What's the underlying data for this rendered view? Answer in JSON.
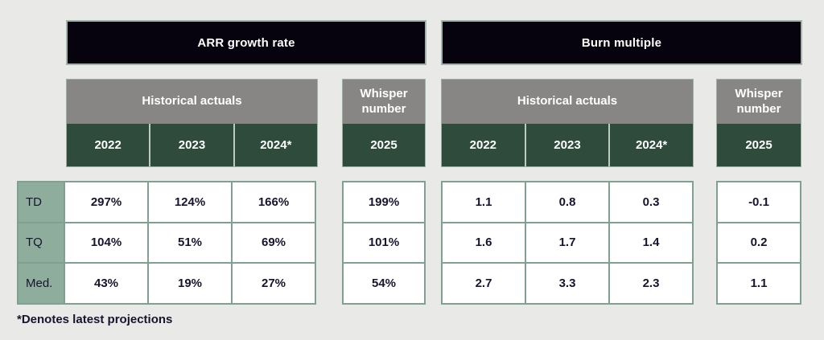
{
  "background": "#e9e9e7",
  "colors": {
    "title_bar_bg": "#06030f",
    "title_bar_text": "#ffffff",
    "gray_header_bg": "#878685",
    "green_header_bg": "#2e4b3b",
    "row_label_bg": "#8ead9d",
    "table_border": "#7fa192",
    "value_text": "#16152d"
  },
  "headers": {
    "historical": "Historical actuals",
    "whisper": "Whisper number",
    "years": [
      "2022",
      "2023",
      "2024*"
    ],
    "whisper_year": "2025"
  },
  "chart_data": [
    {
      "type": "table",
      "title": "ARR growth rate",
      "column_groups": [
        "Historical actuals",
        "Whisper number"
      ],
      "columns": [
        "2022",
        "2023",
        "2024*",
        "2025"
      ],
      "rows": [
        {
          "label": "TD",
          "values": [
            "297%",
            "124%",
            "166%",
            "199%"
          ]
        },
        {
          "label": "TQ",
          "values": [
            "104%",
            "51%",
            "69%",
            "101%"
          ]
        },
        {
          "label": "Med.",
          "values": [
            "43%",
            "19%",
            "27%",
            "54%"
          ]
        }
      ]
    },
    {
      "type": "table",
      "title": "Burn multiple",
      "column_groups": [
        "Historical actuals",
        "Whisper number"
      ],
      "columns": [
        "2022",
        "2023",
        "2024*",
        "2025"
      ],
      "rows": [
        {
          "label": "TD",
          "values": [
            "1.1",
            "0.8",
            "0.3",
            "-0.1"
          ]
        },
        {
          "label": "TQ",
          "values": [
            "1.6",
            "1.7",
            "1.4",
            "0.2"
          ]
        },
        {
          "label": "Med.",
          "values": [
            "2.7",
            "3.3",
            "2.3",
            "1.1"
          ]
        }
      ]
    }
  ],
  "footnote": "*Denotes latest projections"
}
